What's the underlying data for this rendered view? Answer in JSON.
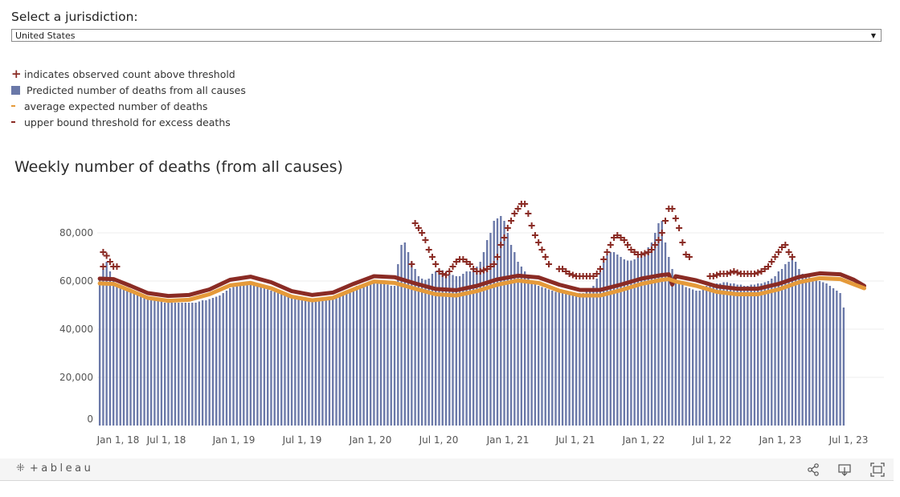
{
  "selector": {
    "title": "Select a jurisdiction:",
    "selected": "United States"
  },
  "legend": [
    {
      "symbol": "plus",
      "label": "indicates observed count above threshold",
      "color": "#8a2b24"
    },
    {
      "symbol": "bar",
      "label": "Predicted number of deaths from all causes",
      "color": "#6a78a8"
    },
    {
      "symbol": "dash",
      "label": "average expected number of deaths",
      "color": "#e59a3a"
    },
    {
      "symbol": "dash",
      "label": "upper bound threshold for excess deaths",
      "color": "#8a2b24"
    }
  ],
  "footer": {
    "brand": "+ableau"
  },
  "chart_data": {
    "type": "bar",
    "title": "Weekly number of deaths (from all causes)",
    "x_start": "2018-01-06",
    "week_days": 7,
    "x_ticks": [
      "Jan 1, 18",
      "Jul 1, 18",
      "Jan 1, 19",
      "Jul 1, 19",
      "Jan 1, 20",
      "Jul 1, 20",
      "Jan 1, 21",
      "Jul 1, 21",
      "Jan 1, 22",
      "Jul 1, 22",
      "Jan 1, 23",
      "Jul 1, 23"
    ],
    "y_ticks": [
      0,
      20000,
      40000,
      60000,
      80000
    ],
    "ylim": [
      0,
      90000
    ],
    "grid": true,
    "series": [
      {
        "name": "Predicted number of deaths from all causes",
        "kind": "bars",
        "color": "#6a78a8",
        "values": [
          61000,
          65000,
          68000,
          64000,
          61500,
          58000,
          57500,
          57000,
          56500,
          56000,
          55500,
          55000,
          54500,
          54000,
          53500,
          53000,
          52500,
          52000,
          51500,
          51000,
          51000,
          51000,
          51000,
          51000,
          51000,
          51000,
          51000,
          51000,
          51000,
          51500,
          52000,
          52000,
          52500,
          53000,
          53500,
          54000,
          55000,
          56000,
          57000,
          57500,
          58000,
          58500,
          58500,
          58500,
          58500,
          58500,
          58000,
          57500,
          57000,
          56500,
          56000,
          55500,
          55000,
          54500,
          54000,
          53500,
          53500,
          53000,
          53000,
          52500,
          52500,
          52500,
          52500,
          52500,
          52500,
          52500,
          53000,
          53000,
          53500,
          54000,
          54500,
          55000,
          55500,
          56000,
          57000,
          58000,
          58500,
          59000,
          59500,
          59500,
          60000,
          60000,
          59500,
          59000,
          58500,
          58000,
          58000,
          67000,
          75000,
          76000,
          72000,
          68000,
          65000,
          62000,
          61000,
          60500,
          61000,
          63000,
          64000,
          65000,
          64500,
          64000,
          63000,
          62500,
          62000,
          62000,
          63000,
          64000,
          64000,
          65000,
          66000,
          68000,
          72000,
          77000,
          80000,
          85000,
          86000,
          87000,
          85000,
          80000,
          75000,
          72000,
          68000,
          66000,
          64000,
          62000,
          60000,
          59000,
          58000,
          57500,
          57000,
          56500,
          56000,
          55500,
          55500,
          55000,
          55000,
          55000,
          55000,
          55000,
          55000,
          55000,
          55500,
          56000,
          58000,
          61000,
          64000,
          68000,
          71000,
          72000,
          72000,
          71000,
          70000,
          69000,
          68500,
          68500,
          69000,
          70000,
          71000,
          72000,
          74000,
          76000,
          80000,
          84000,
          85000,
          76000,
          70000,
          65000,
          62000,
          60000,
          58500,
          57500,
          57000,
          56500,
          56000,
          56000,
          58000,
          58000,
          58500,
          58500,
          59000,
          59000,
          59500,
          59500,
          59000,
          59000,
          58500,
          58500,
          58000,
          58000,
          58500,
          58500,
          59000,
          59000,
          59500,
          60000,
          61000,
          62000,
          64000,
          65000,
          67000,
          68000,
          70000,
          68000,
          65000,
          63000,
          62000,
          61500,
          61000,
          60500,
          60000,
          59500,
          59000,
          58000,
          57000,
          56000,
          55000,
          49000
        ]
      },
      {
        "name": "average expected number of deaths",
        "kind": "line",
        "color": "#e59a3a",
        "points": [
          [
            0,
            59000
          ],
          [
            4,
            58800
          ],
          [
            9,
            56000
          ],
          [
            14,
            53000
          ],
          [
            20,
            51800
          ],
          [
            26,
            52200
          ],
          [
            32,
            54500
          ],
          [
            38,
            58200
          ],
          [
            44,
            59200
          ],
          [
            50,
            57000
          ],
          [
            56,
            53500
          ],
          [
            62,
            52000
          ],
          [
            68,
            53000
          ],
          [
            74,
            56500
          ],
          [
            80,
            59800
          ],
          [
            86,
            59200
          ],
          [
            92,
            56800
          ],
          [
            98,
            54500
          ],
          [
            104,
            54000
          ],
          [
            110,
            55800
          ],
          [
            116,
            58500
          ],
          [
            122,
            60200
          ],
          [
            128,
            59200
          ],
          [
            134,
            56000
          ],
          [
            140,
            54000
          ],
          [
            146,
            54000
          ],
          [
            152,
            56200
          ],
          [
            158,
            58800
          ],
          [
            164,
            60500
          ],
          [
            166,
            60800
          ],
          [
            168,
            59800
          ],
          [
            174,
            58000
          ],
          [
            180,
            55500
          ],
          [
            186,
            54500
          ],
          [
            192,
            54500
          ],
          [
            198,
            56500
          ],
          [
            204,
            59500
          ],
          [
            210,
            61200
          ],
          [
            216,
            60800
          ],
          [
            220,
            58600
          ],
          [
            223,
            57000
          ]
        ]
      },
      {
        "name": "upper bound threshold for excess deaths",
        "kind": "line",
        "color": "#8a2b24",
        "points": [
          [
            0,
            61000
          ],
          [
            4,
            60800
          ],
          [
            9,
            58000
          ],
          [
            14,
            55000
          ],
          [
            20,
            53800
          ],
          [
            26,
            54200
          ],
          [
            32,
            56500
          ],
          [
            38,
            60500
          ],
          [
            44,
            61800
          ],
          [
            50,
            59500
          ],
          [
            56,
            55800
          ],
          [
            62,
            54200
          ],
          [
            68,
            55200
          ],
          [
            74,
            58800
          ],
          [
            80,
            62000
          ],
          [
            86,
            61600
          ],
          [
            92,
            59000
          ],
          [
            98,
            56700
          ],
          [
            104,
            56200
          ],
          [
            110,
            58000
          ],
          [
            116,
            60700
          ],
          [
            122,
            62200
          ],
          [
            128,
            61500
          ],
          [
            134,
            58500
          ],
          [
            140,
            56300
          ],
          [
            146,
            56300
          ],
          [
            152,
            58500
          ],
          [
            158,
            61000
          ],
          [
            164,
            62500
          ],
          [
            166,
            62800
          ],
          [
            167,
            58500
          ],
          [
            168,
            62000
          ],
          [
            174,
            60300
          ],
          [
            180,
            57800
          ],
          [
            186,
            56800
          ],
          [
            192,
            56800
          ],
          [
            198,
            58800
          ],
          [
            204,
            61700
          ],
          [
            210,
            63200
          ],
          [
            216,
            62800
          ],
          [
            220,
            60500
          ],
          [
            223,
            58000
          ]
        ]
      },
      {
        "name": "observed count above threshold",
        "kind": "plus",
        "color": "#8a2b24",
        "points": [
          [
            1,
            66000
          ],
          [
            1,
            72000
          ],
          [
            2,
            70500
          ],
          [
            3,
            68000
          ],
          [
            4,
            66000
          ],
          [
            5,
            66000
          ],
          [
            91,
            67000
          ],
          [
            92,
            84000
          ],
          [
            93,
            82000
          ],
          [
            94,
            80000
          ],
          [
            95,
            77000
          ],
          [
            96,
            73000
          ],
          [
            97,
            70000
          ],
          [
            98,
            67000
          ],
          [
            99,
            64000
          ],
          [
            100,
            63000
          ],
          [
            101,
            62500
          ],
          [
            102,
            64000
          ],
          [
            103,
            66000
          ],
          [
            104,
            68000
          ],
          [
            105,
            69000
          ],
          [
            106,
            69000
          ],
          [
            107,
            68000
          ],
          [
            108,
            67000
          ],
          [
            109,
            65000
          ],
          [
            110,
            64000
          ],
          [
            111,
            64000
          ],
          [
            112,
            64500
          ],
          [
            113,
            65000
          ],
          [
            114,
            66000
          ],
          [
            115,
            67000
          ],
          [
            116,
            70000
          ],
          [
            117,
            75000
          ],
          [
            118,
            78000
          ],
          [
            119,
            82000
          ],
          [
            120,
            85000
          ],
          [
            121,
            88000
          ],
          [
            122,
            90000
          ],
          [
            123,
            92000
          ],
          [
            124,
            92000
          ],
          [
            125,
            88000
          ],
          [
            126,
            83000
          ],
          [
            127,
            79000
          ],
          [
            128,
            76000
          ],
          [
            129,
            73000
          ],
          [
            130,
            70000
          ],
          [
            131,
            67000
          ],
          [
            134,
            65000
          ],
          [
            135,
            65000
          ],
          [
            136,
            64000
          ],
          [
            137,
            63000
          ],
          [
            138,
            62500
          ],
          [
            139,
            62000
          ],
          [
            140,
            62000
          ],
          [
            141,
            62000
          ],
          [
            142,
            62000
          ],
          [
            143,
            62000
          ],
          [
            144,
            62000
          ],
          [
            145,
            63000
          ],
          [
            146,
            65000
          ],
          [
            147,
            69000
          ],
          [
            148,
            72000
          ],
          [
            149,
            75000
          ],
          [
            150,
            78000
          ],
          [
            151,
            79000
          ],
          [
            152,
            78000
          ],
          [
            153,
            77000
          ],
          [
            154,
            75000
          ],
          [
            155,
            73000
          ],
          [
            156,
            72000
          ],
          [
            157,
            71000
          ],
          [
            158,
            71000
          ],
          [
            159,
            71500
          ],
          [
            160,
            72000
          ],
          [
            161,
            73000
          ],
          [
            162,
            75000
          ],
          [
            163,
            77000
          ],
          [
            164,
            80000
          ],
          [
            165,
            85000
          ],
          [
            166,
            90000
          ],
          [
            167,
            90000
          ],
          [
            168,
            86000
          ],
          [
            169,
            82000
          ],
          [
            170,
            76000
          ],
          [
            171,
            71000
          ],
          [
            172,
            70000
          ],
          [
            178,
            62000
          ],
          [
            179,
            62000
          ],
          [
            180,
            62500
          ],
          [
            181,
            63000
          ],
          [
            182,
            63000
          ],
          [
            183,
            63000
          ],
          [
            184,
            63500
          ],
          [
            185,
            64000
          ],
          [
            186,
            63500
          ],
          [
            187,
            63000
          ],
          [
            188,
            63000
          ],
          [
            189,
            63000
          ],
          [
            190,
            63000
          ],
          [
            191,
            63000
          ],
          [
            192,
            63500
          ],
          [
            193,
            64000
          ],
          [
            194,
            65000
          ],
          [
            195,
            66000
          ],
          [
            196,
            68000
          ],
          [
            197,
            70000
          ],
          [
            198,
            72000
          ],
          [
            199,
            74000
          ],
          [
            200,
            75000
          ],
          [
            201,
            72000
          ],
          [
            202,
            70000
          ]
        ]
      }
    ]
  }
}
